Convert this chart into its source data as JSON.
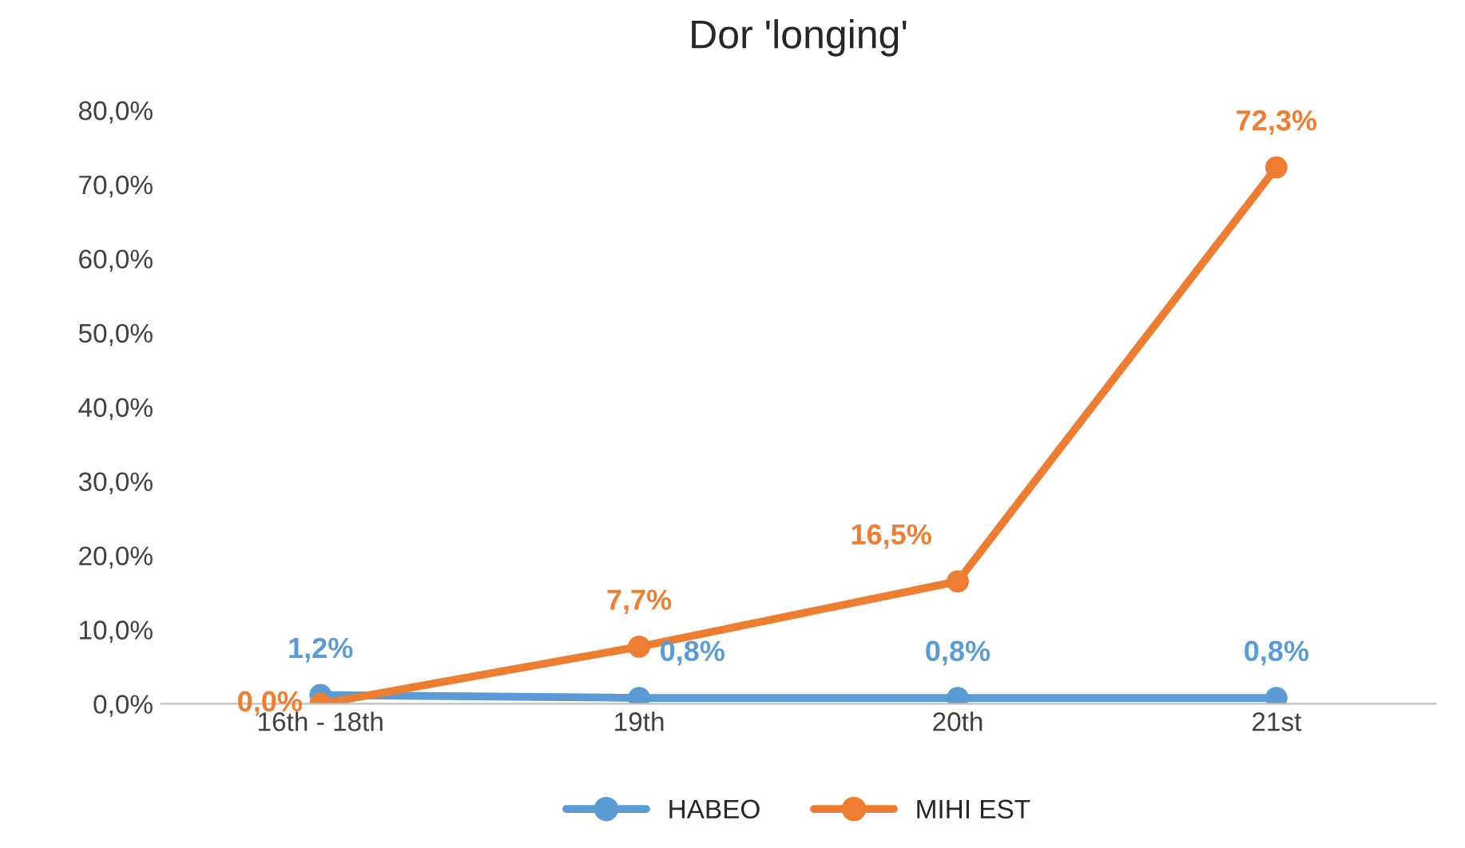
{
  "chart_data": {
    "type": "line",
    "title": "Dor 'longing'",
    "categories": [
      "16th - 18th",
      "19th",
      "20th",
      "21st"
    ],
    "series": [
      {
        "name": "HABEO",
        "color": "#5b9bd5",
        "values": [
          1.2,
          0.8,
          0.8,
          0.8
        ],
        "value_labels": [
          "1,2%",
          "0,8%",
          "0,8%",
          "0,8%"
        ]
      },
      {
        "name": "MIHI EST",
        "color": "#ed7d31",
        "values": [
          0.0,
          7.7,
          16.5,
          72.3
        ],
        "value_labels": [
          "0,0%",
          "7,7%",
          "16,5%",
          "72,3%"
        ]
      }
    ],
    "ylim": [
      0,
      80
    ],
    "yticks": [
      {
        "value": 0,
        "label": "0,0%"
      },
      {
        "value": 10,
        "label": "10,0%"
      },
      {
        "value": 20,
        "label": "20,0%"
      },
      {
        "value": 30,
        "label": "30,0%"
      },
      {
        "value": 40,
        "label": "40,0%"
      },
      {
        "value": 50,
        "label": "50,0%"
      },
      {
        "value": 60,
        "label": "60,0%"
      },
      {
        "value": 70,
        "label": "70,0%"
      },
      {
        "value": 80,
        "label": "80,0%"
      }
    ],
    "grid": false,
    "legend": "bottom",
    "marker": "circle",
    "line_style": "solid"
  }
}
